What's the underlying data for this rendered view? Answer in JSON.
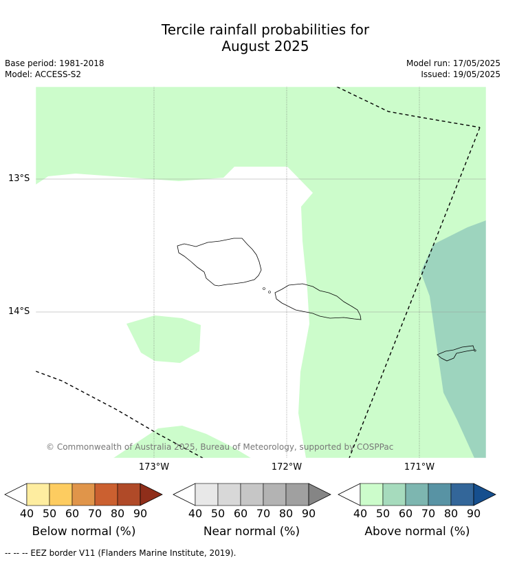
{
  "title_line1": "Tercile rainfall probabilities for",
  "title_line2": "August 2025",
  "meta_left": [
    "Base period: 1981-2018",
    "Model: ACCESS-S2"
  ],
  "meta_right": [
    "Model run: 17/05/2025",
    "Issued: 19/05/2025"
  ],
  "latitude_labels": [
    "13°S",
    "14°S"
  ],
  "longitude_labels": [
    "173°W",
    "172°W",
    "171°W"
  ],
  "copyright": "© Commonwealth of Australia 2025, Bureau of Meteorology, supported by COSPPac",
  "colorbars": [
    {
      "label": "Below normal (%)",
      "ticks": [
        "40",
        "50",
        "60",
        "70",
        "80",
        "90"
      ],
      "colors": [
        "#ffffff",
        "#feeda0",
        "#fdcc60",
        "#e0954a",
        "#cb6030",
        "#b04a28",
        "#8f2e1a"
      ]
    },
    {
      "label": "Near normal (%)",
      "ticks": [
        "40",
        "50",
        "60",
        "70",
        "80",
        "90"
      ],
      "colors": [
        "#ffffff",
        "#e8e8e8",
        "#d8d8d8",
        "#c6c6c6",
        "#b3b3b3",
        "#a0a0a0",
        "#858585"
      ]
    },
    {
      "label": "Above normal (%)",
      "ticks": [
        "40",
        "50",
        "60",
        "70",
        "80",
        "90"
      ],
      "colors": [
        "#ffffff",
        "#ccfccb",
        "#a6dbbd",
        "#7db6b0",
        "#5893a4",
        "#336699",
        "#164f8e"
      ]
    }
  ],
  "footnote": "--  --  -- EEZ border V11 (Flanders Marine Institute, 2019).",
  "colors": {
    "above_light": "#ccfccb",
    "above_mid": "#9dd4be",
    "grid": "#999999"
  }
}
